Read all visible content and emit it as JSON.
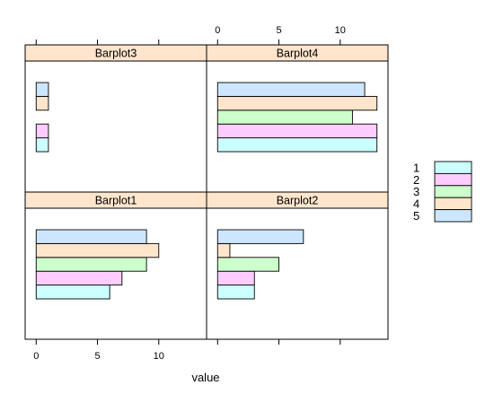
{
  "chart_data": {
    "type": "bar",
    "orientation": "horizontal",
    "layout": "2x2 lattice panels",
    "xlabel": "value",
    "xlim": [
      -0.9,
      13.9
    ],
    "xticks": [
      0,
      5,
      10
    ],
    "grid": false,
    "legend": {
      "placement": "right",
      "entries": [
        "1",
        "2",
        "3",
        "4",
        "5"
      ],
      "colors": [
        "#ccffff",
        "#ffccff",
        "#ccffcc",
        "#ffe5cc",
        "#cce6ff"
      ]
    },
    "colors": {
      "strip": "#ffe5cc",
      "bar_outline": "#000000",
      "frame": "#000000"
    },
    "panels": [
      {
        "name": "Barplot3",
        "categories": [
          "1",
          "2",
          "3",
          "4",
          "5"
        ],
        "values": [
          1,
          1,
          0,
          1,
          1
        ]
      },
      {
        "name": "Barplot4",
        "categories": [
          "1",
          "2",
          "3",
          "4",
          "5"
        ],
        "values": [
          13,
          13,
          11,
          13,
          12
        ]
      },
      {
        "name": "Barplot1",
        "categories": [
          "1",
          "2",
          "3",
          "4",
          "5"
        ],
        "values": [
          6,
          7,
          9,
          10,
          9
        ]
      },
      {
        "name": "Barplot2",
        "categories": [
          "1",
          "2",
          "3",
          "4",
          "5"
        ],
        "values": [
          3,
          3,
          5,
          1,
          7
        ]
      }
    ]
  }
}
